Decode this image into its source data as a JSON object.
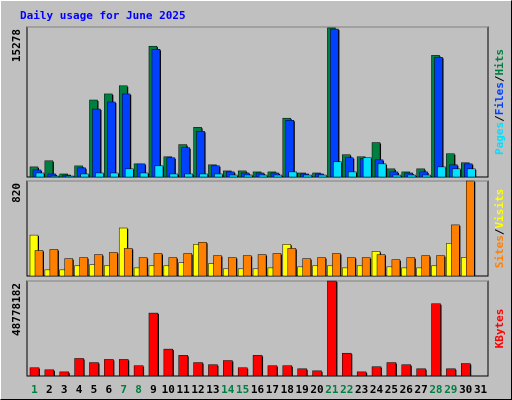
{
  "chart_data": [
    {
      "type": "bar",
      "title": "Daily usage for June 2025",
      "legend_separator": "/",
      "ylim": [
        0,
        15278
      ],
      "yticks": [
        15278
      ],
      "series": [
        {
          "name": "Hits",
          "color": "#008040",
          "values": [
            1030,
            1650,
            310,
            1130,
            7840,
            8460,
            9290,
            1340,
            13320,
            2060,
            3300,
            5060,
            1240,
            620,
            620,
            520,
            520,
            5990,
            410,
            410,
            15180,
            2270,
            2060,
            3510,
            830,
            520,
            830,
            12390,
            2370,
            1450,
            null
          ]
        },
        {
          "name": "Files",
          "color": "#0040ff",
          "values": [
            720,
            310,
            200,
            930,
            6920,
            7640,
            8460,
            1340,
            13010,
            1960,
            2990,
            4650,
            1140,
            520,
            410,
            410,
            410,
            5780,
            310,
            310,
            15070,
            1960,
            1860,
            1750,
            520,
            410,
            520,
            12190,
            1240,
            1340,
            null
          ]
        },
        {
          "name": "Pages",
          "color": "#00e0ff",
          "values": [
            410,
            100,
            100,
            310,
            410,
            410,
            830,
            410,
            1140,
            310,
            310,
            310,
            310,
            200,
            200,
            200,
            200,
            520,
            200,
            200,
            1550,
            520,
            1960,
            1340,
            200,
            200,
            200,
            1030,
            830,
            830,
            null
          ]
        }
      ]
    },
    {
      "type": "bar",
      "legend_separator": "/",
      "ylim": [
        0,
        820
      ],
      "yticks": [
        820
      ],
      "series": [
        {
          "name": "Visits",
          "color": "#ffff00",
          "values": [
            353,
            53,
            53,
            88,
            97,
            88,
            414,
            70,
            88,
            88,
            115,
            273,
            106,
            62,
            62,
            62,
            70,
            273,
            79,
            88,
            88,
            70,
            88,
            212,
            79,
            70,
            70,
            88,
            282,
            159,
            null
          ]
        },
        {
          "name": "Sites",
          "color": "#ff8000",
          "values": [
            220,
            229,
            150,
            159,
            185,
            203,
            238,
            159,
            194,
            159,
            194,
            291,
            176,
            159,
            176,
            185,
            194,
            238,
            150,
            159,
            194,
            159,
            159,
            185,
            141,
            159,
            176,
            176,
            441,
            820,
            null
          ]
        }
      ]
    },
    {
      "type": "bar",
      "ylim": [
        0,
        48778182
      ],
      "yticks": [
        48778182
      ],
      "categories": [
        "1",
        "2",
        "3",
        "4",
        "5",
        "6",
        "7",
        "8",
        "9",
        "10",
        "11",
        "12",
        "13",
        "14",
        "15",
        "16",
        "17",
        "18",
        "19",
        "20",
        "21",
        "22",
        "23",
        "24",
        "25",
        "26",
        "27",
        "28",
        "29",
        "30",
        "31"
      ],
      "category_colors": [
        "#008040",
        "#000000",
        "#000000",
        "#000000",
        "#000000",
        "#000000",
        "#008040",
        "#008040",
        "#000000",
        "#000000",
        "#000000",
        "#000000",
        "#000000",
        "#008040",
        "#008040",
        "#000000",
        "#000000",
        "#000000",
        "#000000",
        "#000000",
        "#008040",
        "#008040",
        "#000000",
        "#000000",
        "#000000",
        "#000000",
        "#000000",
        "#008040",
        "#008040",
        "#000000",
        "#000000"
      ],
      "series": [
        {
          "name": "KBytes",
          "color": "#ff0000",
          "values": [
            4240000,
            3180000,
            2120000,
            9000000,
            6900000,
            8500000,
            8500000,
            5300000,
            32300000,
            13800000,
            10600000,
            6900000,
            5800000,
            7950000,
            4240000,
            10600000,
            5300000,
            5300000,
            3700000,
            2650000,
            48778182,
            11700000,
            2120000,
            4770000,
            6900000,
            5800000,
            3700000,
            37100000,
            3700000,
            6400000,
            null
          ]
        }
      ]
    }
  ]
}
